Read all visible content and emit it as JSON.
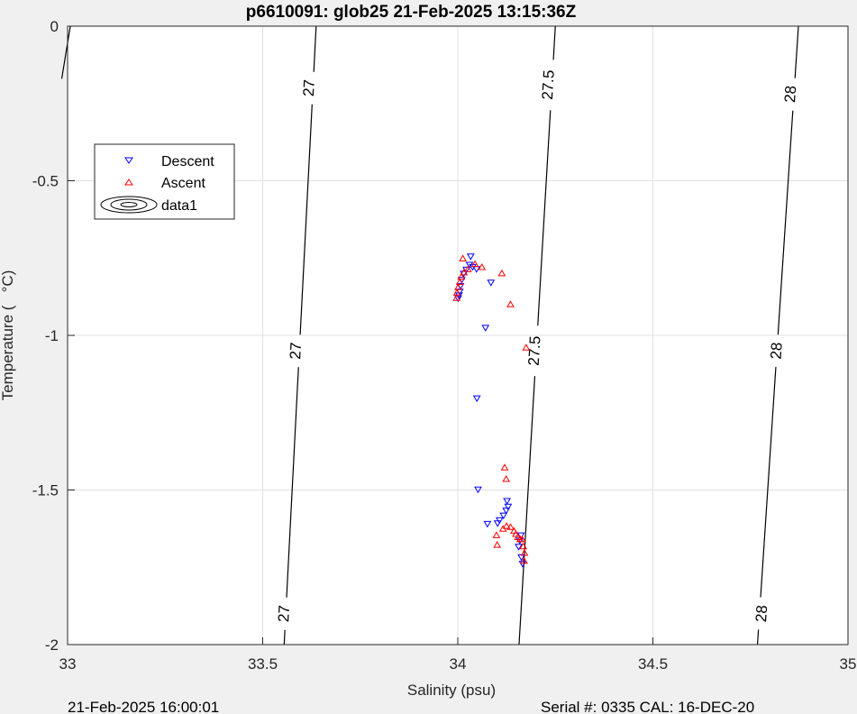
{
  "chart_data": {
    "type": "scatter",
    "title": "p6610091: glob25 21-Feb-2025 13:15:36Z",
    "xlabel": "Salinity (psu)",
    "ylabel": "Temperature (   °C)",
    "xlim": [
      33,
      35
    ],
    "ylim": [
      -2,
      0
    ],
    "xticks": [
      33,
      33.5,
      34,
      34.5,
      35
    ],
    "xtick_labels": [
      "33",
      "33.5",
      "34",
      "34.5",
      "35"
    ],
    "yticks": [
      -2,
      -1.5,
      -1,
      -0.5,
      0
    ],
    "ytick_labels": [
      "-2",
      "-1.5",
      "-1",
      "-0.5",
      "0"
    ],
    "grid": true,
    "legend": {
      "location": "upper-left",
      "entries": [
        "Descent",
        "Ascent",
        "data1"
      ]
    },
    "contours": [
      {
        "level_label": "27",
        "points": [
          [
            33.007,
            0
          ],
          [
            32.985,
            -0.17
          ]
        ],
        "labels": []
      },
      {
        "level_label": "27",
        "points": [
          [
            33.637,
            0
          ],
          [
            33.555,
            -2
          ]
        ],
        "labels": [
          [
            33.621,
            -0.2
          ],
          [
            33.587,
            -1.05
          ],
          [
            33.557,
            -1.9
          ]
        ]
      },
      {
        "level_label": "27.5",
        "points": [
          [
            34.25,
            0
          ],
          [
            34.157,
            -2
          ]
        ],
        "labels": [
          [
            34.234,
            -0.19
          ],
          [
            34.199,
            -1.05
          ]
        ]
      },
      {
        "level_label": "28",
        "points": [
          [
            34.873,
            0
          ],
          [
            34.768,
            -2
          ]
        ],
        "labels": [
          [
            34.855,
            -0.22
          ],
          [
            34.819,
            -1.05
          ],
          [
            34.781,
            -1.9
          ]
        ]
      }
    ],
    "series": [
      {
        "name": "Descent",
        "color": "#0000ff",
        "marker": "triangle-down",
        "points": [
          [
            34.033,
            -0.744
          ],
          [
            34.038,
            -0.778
          ],
          [
            34.048,
            -0.785
          ],
          [
            34.085,
            -0.829
          ],
          [
            34.03,
            -0.771
          ],
          [
            34.022,
            -0.787
          ],
          [
            34.015,
            -0.8
          ],
          [
            34.01,
            -0.82
          ],
          [
            34.007,
            -0.84
          ],
          [
            34.005,
            -0.858
          ],
          [
            34.003,
            -0.87
          ],
          [
            34.001,
            -0.88
          ],
          [
            34.071,
            -0.975
          ],
          [
            34.049,
            -1.203
          ],
          [
            34.052,
            -1.498
          ],
          [
            34.126,
            -1.535
          ],
          [
            34.129,
            -1.553
          ],
          [
            34.124,
            -1.566
          ],
          [
            34.117,
            -1.582
          ],
          [
            34.107,
            -1.597
          ],
          [
            34.102,
            -1.607
          ],
          [
            34.076,
            -1.609
          ],
          [
            34.162,
            -1.646
          ],
          [
            34.159,
            -1.663
          ],
          [
            34.156,
            -1.683
          ],
          [
            34.163,
            -1.717
          ],
          [
            34.166,
            -1.738
          ]
        ]
      },
      {
        "name": "Ascent",
        "color": "#ff0000",
        "marker": "triangle-up",
        "points": [
          [
            34.013,
            -0.752
          ],
          [
            34.062,
            -0.78
          ],
          [
            34.113,
            -0.8
          ],
          [
            34.044,
            -0.77
          ],
          [
            34.026,
            -0.787
          ],
          [
            34.016,
            -0.797
          ],
          [
            34.009,
            -0.811
          ],
          [
            34.005,
            -0.828
          ],
          [
            34.001,
            -0.845
          ],
          [
            33.998,
            -0.862
          ],
          [
            33.997,
            -0.88
          ],
          [
            34.135,
            -0.9
          ],
          [
            34.175,
            -1.04
          ],
          [
            34.12,
            -1.428
          ],
          [
            34.124,
            -1.465
          ],
          [
            34.125,
            -1.617
          ],
          [
            34.135,
            -1.62
          ],
          [
            34.116,
            -1.626
          ],
          [
            34.144,
            -1.633
          ],
          [
            34.149,
            -1.643
          ],
          [
            34.154,
            -1.653
          ],
          [
            34.16,
            -1.66
          ],
          [
            34.099,
            -1.647
          ],
          [
            34.101,
            -1.678
          ],
          [
            34.165,
            -1.66
          ],
          [
            34.168,
            -1.683
          ],
          [
            34.171,
            -1.704
          ],
          [
            34.17,
            -1.73
          ]
        ]
      }
    ]
  },
  "footer": {
    "left": "21-Feb-2025 16:00:01",
    "right": "Serial #: 0335  CAL: 16-DEC-20"
  }
}
